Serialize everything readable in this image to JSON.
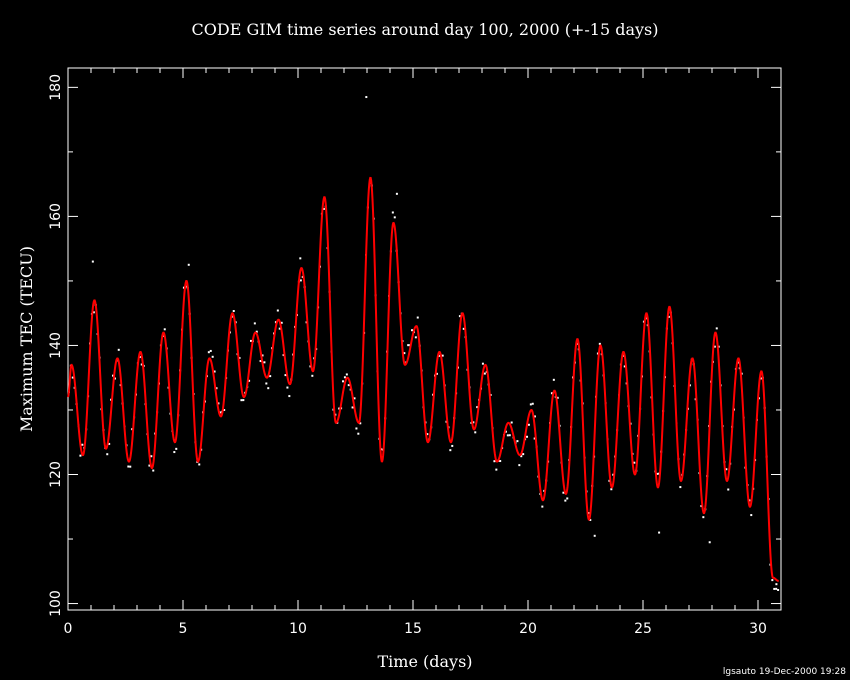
{
  "colors": {
    "background": "#000000",
    "axes": "#ffffff",
    "fit_line": "#ff0000",
    "observations": "#ffffff"
  },
  "footer": {
    "stamp": "lgsauto 19-Dec-2000 19:28"
  },
  "chart_data": {
    "type": "line",
    "title": "CODE GIM time series around day 100, 2000 (+-15 days)",
    "xlabel": "Time (days)",
    "ylabel": "Maximum TEC (TECU)",
    "xlim": [
      0,
      31
    ],
    "ylim": [
      99,
      183
    ],
    "x_major_ticks": [
      0,
      5,
      10,
      15,
      20,
      25,
      30
    ],
    "x_tick_labels": [
      "0",
      "5",
      "10",
      "15",
      "20",
      "25",
      "30"
    ],
    "x_minor_step": 1,
    "y_major_ticks": [
      100,
      120,
      140,
      160,
      180
    ],
    "y_tick_labels": [
      "100",
      "120",
      "140",
      "160",
      "180"
    ],
    "y_minor_step": 10,
    "grid": false,
    "legend": "none",
    "series": [
      {
        "kind": "fit",
        "color": "#ff0000",
        "daily": [
          {
            "x": 0.0,
            "peak": 137,
            "trough": 123
          },
          {
            "x": 1.0,
            "peak": 147,
            "trough": 124
          },
          {
            "x": 2.0,
            "peak": 138,
            "trough": 122
          },
          {
            "x": 3.0,
            "peak": 139,
            "trough": 121
          },
          {
            "x": 4.0,
            "peak": 142,
            "trough": 125
          },
          {
            "x": 5.0,
            "peak": 150,
            "trough": 122
          },
          {
            "x": 6.0,
            "peak": 138,
            "trough": 129
          },
          {
            "x": 7.0,
            "peak": 145,
            "trough": 132
          },
          {
            "x": 8.0,
            "peak": 142,
            "trough": 135
          },
          {
            "x": 9.0,
            "peak": 144,
            "trough": 134
          },
          {
            "x": 10.0,
            "peak": 152,
            "trough": 136
          },
          {
            "x": 11.0,
            "peak": 163,
            "trough": 128
          },
          {
            "x": 12.0,
            "peak": 135,
            "trough": 128
          },
          {
            "x": 13.0,
            "peak": 166,
            "trough": 122
          },
          {
            "x": 14.0,
            "peak": 159,
            "trough": 137
          },
          {
            "x": 15.0,
            "peak": 143,
            "trough": 125
          },
          {
            "x": 16.0,
            "peak": 139,
            "trough": 125
          },
          {
            "x": 17.0,
            "peak": 145,
            "trough": 127
          },
          {
            "x": 18.0,
            "peak": 137,
            "trough": 122
          },
          {
            "x": 19.0,
            "peak": 128,
            "trough": 123
          },
          {
            "x": 20.0,
            "peak": 130,
            "trough": 116
          },
          {
            "x": 21.0,
            "peak": 133,
            "trough": 117
          },
          {
            "x": 22.0,
            "peak": 141,
            "trough": 113
          },
          {
            "x": 23.0,
            "peak": 140,
            "trough": 118
          },
          {
            "x": 24.0,
            "peak": 139,
            "trough": 120
          },
          {
            "x": 25.0,
            "peak": 145,
            "trough": 118
          },
          {
            "x": 26.0,
            "peak": 146,
            "trough": 119
          },
          {
            "x": 27.0,
            "peak": 138,
            "trough": 114
          },
          {
            "x": 28.0,
            "peak": 142,
            "trough": 119
          },
          {
            "x": 29.0,
            "peak": 138,
            "trough": 115
          },
          {
            "x": 30.0,
            "peak": 136,
            "trough": 104
          }
        ]
      },
      {
        "kind": "observations",
        "color": "#ffffff",
        "outliers": [
          {
            "x": 12.97,
            "y": 178.5
          },
          {
            "x": 14.3,
            "y": 163.5
          },
          {
            "x": 1.08,
            "y": 153
          },
          {
            "x": 5.25,
            "y": 152.5
          },
          {
            "x": 10.1,
            "y": 153.5
          },
          {
            "x": 20.3,
            "y": 129
          },
          {
            "x": 22.9,
            "y": 110.5
          },
          {
            "x": 25.7,
            "y": 111
          },
          {
            "x": 27.9,
            "y": 109.5
          },
          {
            "x": 30.8,
            "y": 103
          }
        ]
      }
    ]
  }
}
